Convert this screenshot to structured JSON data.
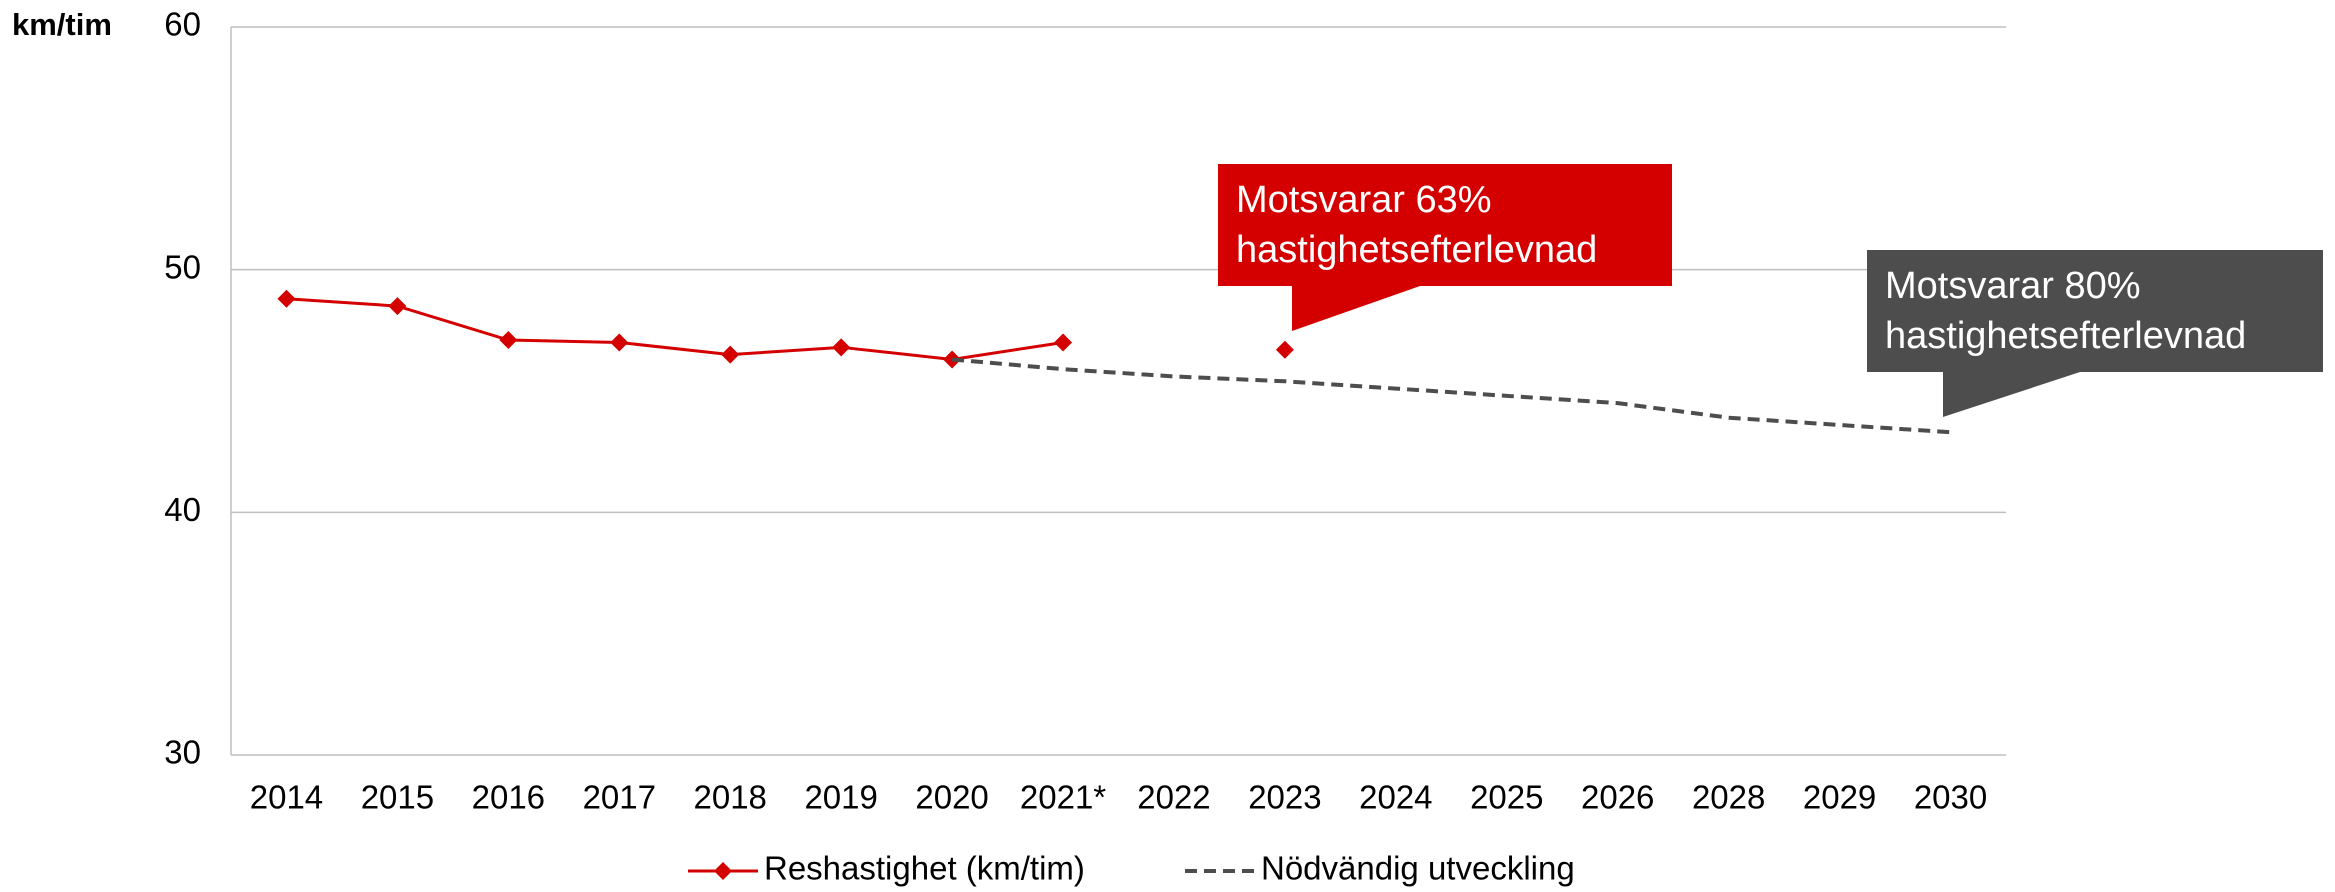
{
  "chart_data": {
    "type": "line",
    "y_axis_label": "km/tim",
    "categories": [
      "2014",
      "2015",
      "2016",
      "2017",
      "2018",
      "2019",
      "2020",
      "2021*",
      "2022",
      "2023",
      "2024",
      "2025",
      "2026",
      "2028",
      "2029",
      "2030"
    ],
    "series": [
      {
        "name": "Reshastighet (km/tim)",
        "color": "#d40000",
        "dashed": false,
        "markers": true,
        "values": [
          48.8,
          48.5,
          47.1,
          47.0,
          46.5,
          46.8,
          46.3,
          47.0,
          null,
          46.7,
          null,
          null,
          null,
          null,
          null,
          null
        ]
      },
      {
        "name": "Nödvändig utveckling",
        "color": "#4d4d4d",
        "dashed": true,
        "markers": false,
        "values": [
          null,
          null,
          null,
          null,
          null,
          null,
          46.3,
          45.9,
          45.6,
          45.4,
          45.1,
          44.8,
          44.5,
          43.9,
          43.6,
          43.3
        ]
      }
    ],
    "ylim": [
      30,
      60
    ],
    "yticks": [
      30,
      40,
      50,
      60
    ],
    "grid": true,
    "legend": "bottom",
    "annotations": [
      {
        "lines": [
          "Motsvarar 63%",
          "hastighetsefterlevnad"
        ],
        "color": "#d40000"
      },
      {
        "lines": [
          "Motsvarar 80%",
          "hastighetsefterlevnad"
        ],
        "color": "#4d4d4d"
      }
    ]
  }
}
